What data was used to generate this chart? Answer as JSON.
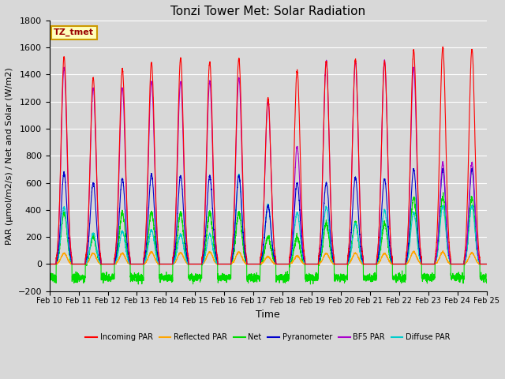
{
  "title": "Tonzi Tower Met: Solar Radiation",
  "xlabel": "Time",
  "ylabel": "PAR (μmol/m2/s) / Net and Solar (W/m2)",
  "ylim": [
    -200,
    1800
  ],
  "background_color": "#d8d8d8",
  "grid_color": "white",
  "fig_bg": "#d8d8d8",
  "series": {
    "Incoming PAR": {
      "color": "#ff0000",
      "lw": 0.8
    },
    "Reflected PAR": {
      "color": "#ffa500",
      "lw": 0.8
    },
    "Net": {
      "color": "#00dd00",
      "lw": 0.8
    },
    "Pyranometer": {
      "color": "#0000cc",
      "lw": 0.8
    },
    "BF5 PAR": {
      "color": "#aa00cc",
      "lw": 0.8
    },
    "Diffuse PAR": {
      "color": "#00cccc",
      "lw": 0.8
    }
  },
  "legend_label": "TZ_tmet",
  "tick_labels": [
    "Feb 10",
    "Feb 11",
    "Feb 12",
    "Feb 13",
    "Feb 14",
    "Feb 15",
    "Feb 16",
    "Feb 17",
    "Feb 18",
    "Feb 19",
    "Feb 20",
    "Feb 21",
    "Feb 22",
    "Feb 23",
    "Feb 24",
    "Feb 25"
  ],
  "daily_peaks": {
    "Incoming PAR": [
      1530,
      1375,
      1445,
      1490,
      1520,
      1490,
      1520,
      1225,
      1430,
      1500,
      1510,
      1500,
      1580,
      1600,
      1590
    ],
    "Reflected PAR": [
      80,
      80,
      80,
      90,
      85,
      90,
      90,
      55,
      60,
      80,
      80,
      80,
      90,
      90,
      85
    ],
    "Net": [
      380,
      200,
      380,
      380,
      375,
      380,
      380,
      200,
      200,
      300,
      310,
      300,
      490,
      500,
      490
    ],
    "Pyranometer": [
      670,
      600,
      630,
      660,
      650,
      650,
      650,
      430,
      600,
      600,
      640,
      630,
      700,
      700,
      700
    ],
    "BF5 PAR": [
      1450,
      1300,
      1300,
      1350,
      1350,
      1350,
      1380,
      1200,
      870,
      1500,
      1500,
      1500,
      1450,
      750,
      750
    ],
    "Diffuse PAR": [
      420,
      225,
      240,
      250,
      220,
      220,
      660,
      440,
      380,
      420,
      300,
      400,
      380,
      430,
      430
    ]
  },
  "net_night": -100,
  "net_night_noise": 15
}
